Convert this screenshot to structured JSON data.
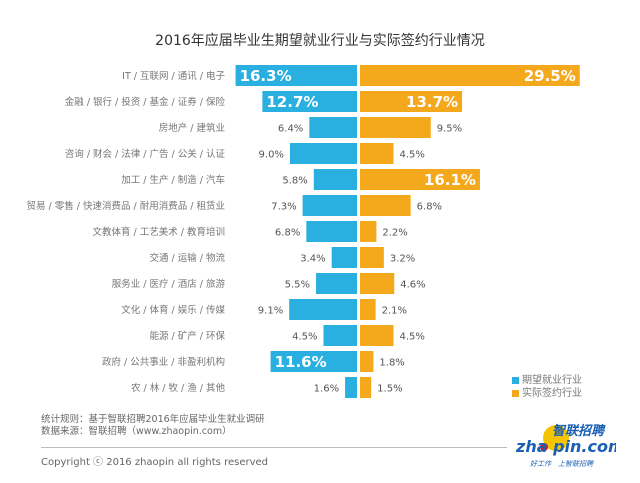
{
  "chart_data": {
    "type": "bar",
    "title": "2016年应届毕业生期望就业行业与实际签约行业情况",
    "categories": [
      "IT / 互联网 / 通讯 / 电子",
      "金融 / 银行 / 投资 / 基金 / 证券 / 保险",
      "房地产 / 建筑业",
      "咨询 / 财会 / 法律 / 广告 / 公关 / 认证",
      "加工 / 生产 / 制造 / 汽车",
      "贸易 / 零售 / 快速消费品 / 耐用消费品 / 租赁业",
      "文教体育 / 工艺美术 / 教育培训",
      "交通 / 运输 / 物流",
      "服务业 / 医疗 / 酒店 / 旅游",
      "文化 / 体育 / 娱乐 / 传媒",
      "能源 / 矿产 / 环保",
      "政府 / 公共事业 / 非盈利机构",
      "农 / 林 / 牧 / 渔 / 其他"
    ],
    "series": [
      {
        "name": "期望就业行业",
        "color": "#29b0e0",
        "values": [
          16.3,
          12.7,
          6.4,
          9.0,
          5.8,
          7.3,
          6.8,
          3.4,
          5.5,
          9.1,
          4.5,
          11.6,
          1.6
        ]
      },
      {
        "name": "实际签约行业",
        "color": "#f4a81c",
        "values": [
          29.5,
          13.7,
          9.5,
          4.5,
          16.1,
          6.8,
          2.2,
          3.2,
          4.6,
          2.1,
          4.5,
          1.8,
          1.5
        ]
      }
    ],
    "unit": "%",
    "orientation": "horizontal-diverging",
    "legend": "bottom-right",
    "grid": false
  },
  "footer": {
    "note1": "统计规则：基于智联招聘2016年应届毕业生就业调研",
    "note2": "数据来源：智联招聘（www.zhaopin.com）",
    "copyright": "Copyright ⓒ 2016 zhaopin all rights reserved"
  },
  "logo": {
    "cn": "智联招聘",
    "en": "zhaopin.com",
    "slogan": "好工作 上智联招聘"
  }
}
